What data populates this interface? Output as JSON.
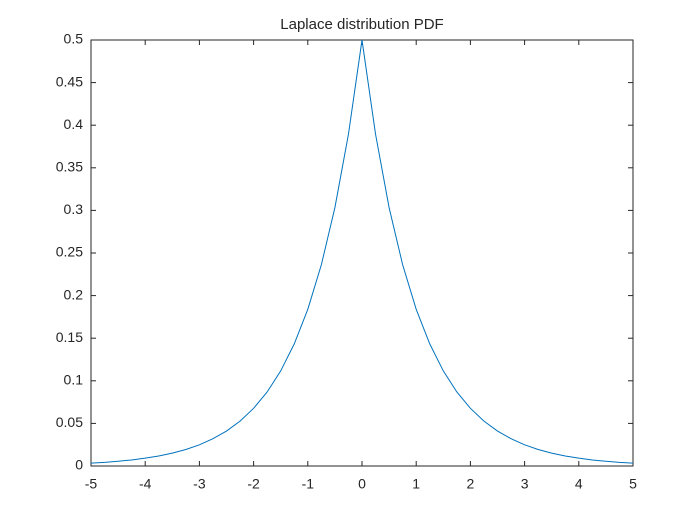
{
  "chart_data": {
    "type": "line",
    "title": "Laplace distribution PDF",
    "x": [
      -5,
      -4.75,
      -4.5,
      -4.25,
      -4,
      -3.75,
      -3.5,
      -3.25,
      -3,
      -2.75,
      -2.5,
      -2.25,
      -2,
      -1.75,
      -1.5,
      -1.25,
      -1,
      -0.75,
      -0.5,
      -0.25,
      0,
      0.25,
      0.5,
      0.75,
      1,
      1.25,
      1.5,
      1.75,
      2,
      2.25,
      2.5,
      2.75,
      3,
      3.25,
      3.5,
      3.75,
      4,
      4.25,
      4.5,
      4.75,
      5
    ],
    "series": [
      {
        "color": "#0072bd",
        "values": [
          0.0034,
          0.0043,
          0.0056,
          0.0071,
          0.0092,
          0.0118,
          0.0151,
          0.0194,
          0.0249,
          0.032,
          0.041,
          0.0527,
          0.0677,
          0.0869,
          0.1116,
          0.1433,
          0.1839,
          0.2362,
          0.3033,
          0.3894,
          0.5,
          0.3894,
          0.3033,
          0.2362,
          0.1839,
          0.1433,
          0.1116,
          0.0869,
          0.0677,
          0.0527,
          0.041,
          0.032,
          0.0249,
          0.0194,
          0.0151,
          0.0118,
          0.0092,
          0.0071,
          0.0056,
          0.0043,
          0.0034
        ]
      }
    ],
    "xlim": [
      -5,
      5
    ],
    "xticks": [
      -5,
      -4,
      -3,
      -2,
      -1,
      0,
      1,
      2,
      3,
      4,
      5
    ],
    "ylim": [
      0,
      0.5
    ],
    "yticks": [
      0,
      0.05,
      0.1,
      0.15,
      0.2,
      0.25,
      0.3,
      0.35,
      0.4,
      0.45,
      0.5
    ]
  }
}
